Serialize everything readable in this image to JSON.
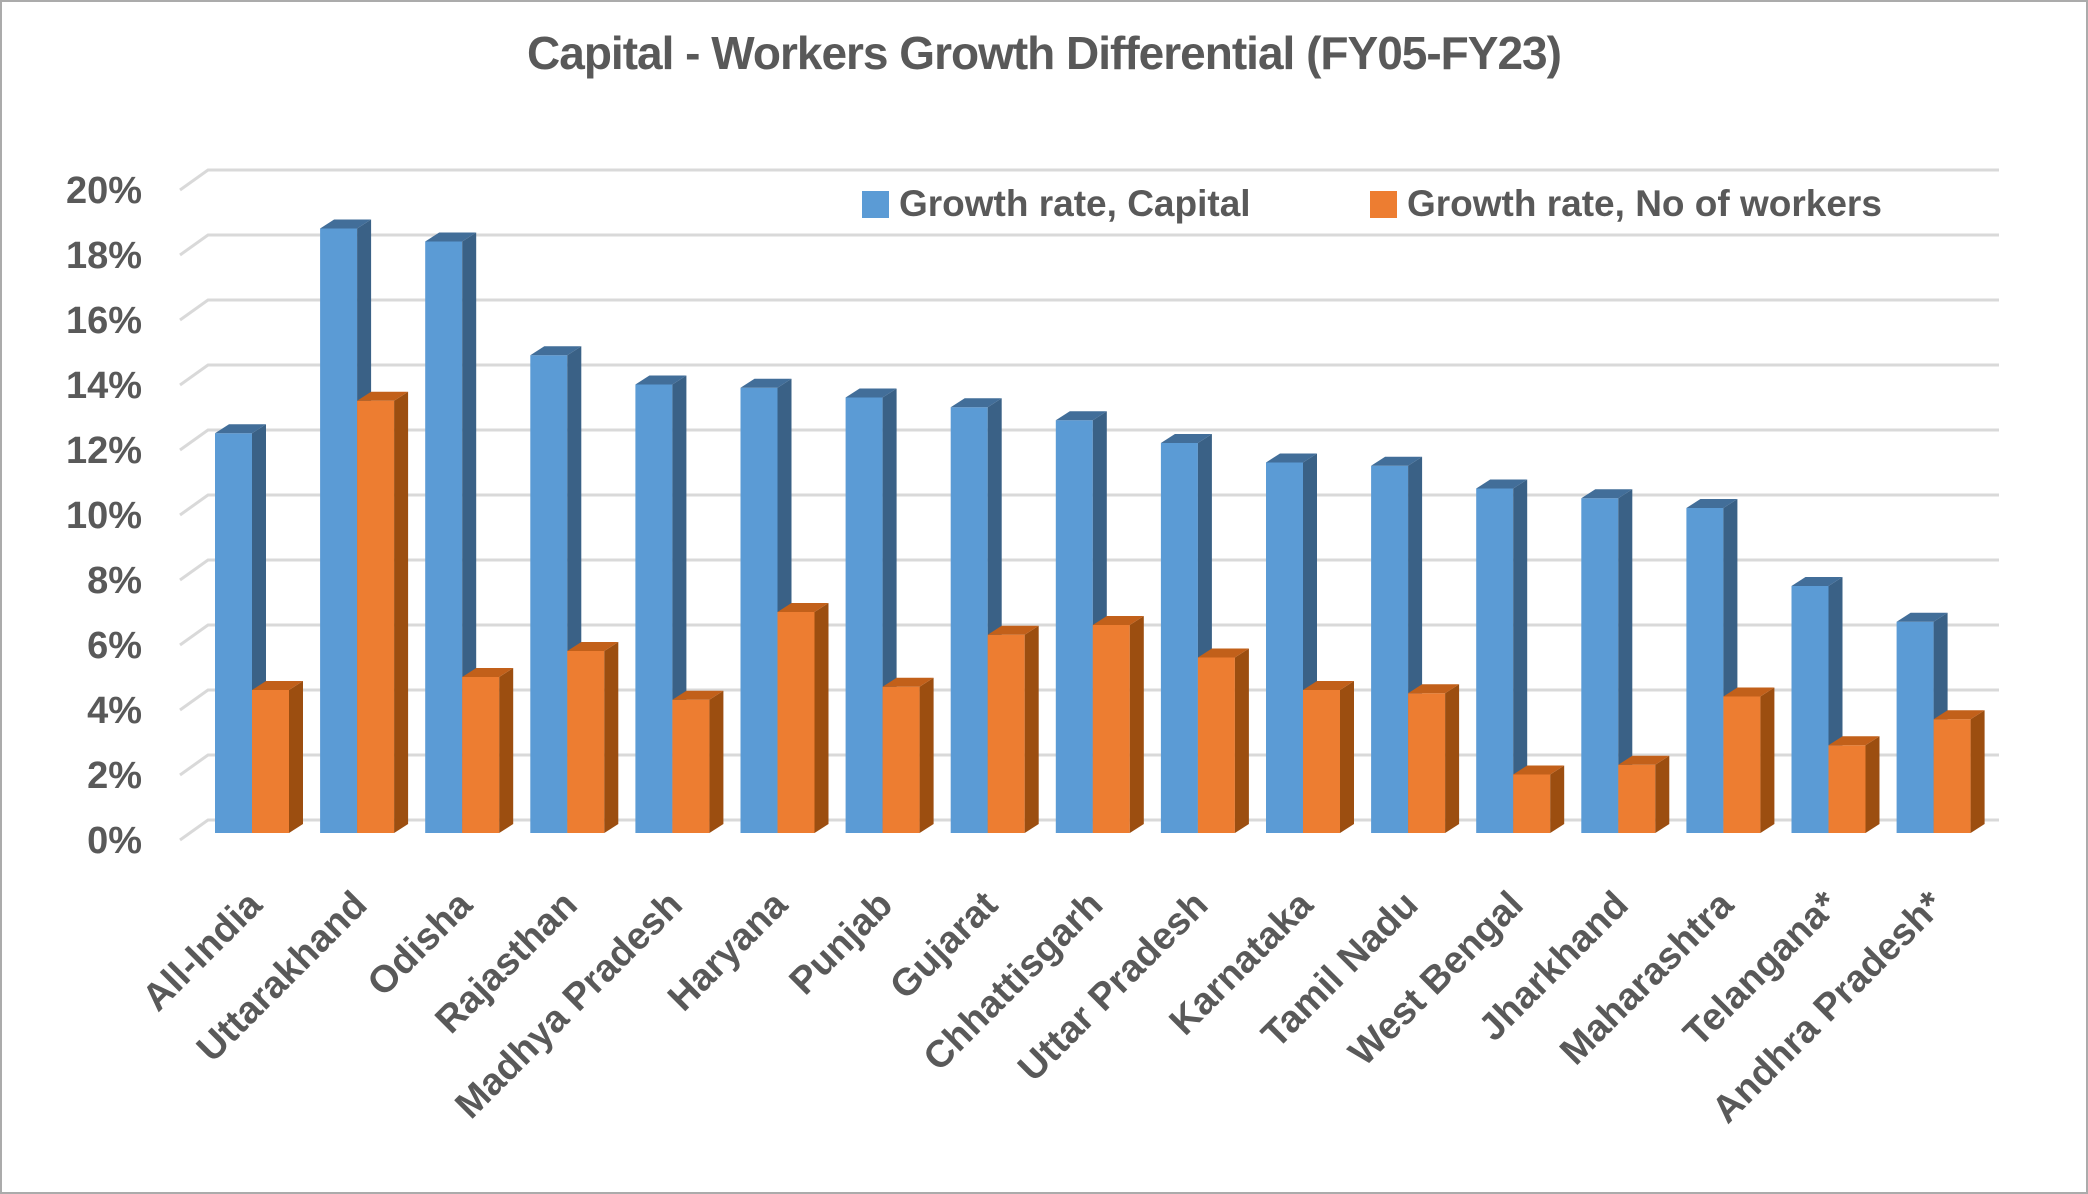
{
  "title": "Capital - Workers Growth Differential (FY05-FY23)",
  "legend": {
    "items": [
      {
        "label": "Growth rate, Capital",
        "color": "#5B9BD5"
      },
      {
        "label": "Growth rate, No of workers",
        "color": "#ED7D31"
      }
    ]
  },
  "axis": {
    "y_tick_labels": [
      "0%",
      "2%",
      "4%",
      "6%",
      "8%",
      "10%",
      "12%",
      "14%",
      "16%",
      "18%",
      "20%"
    ],
    "y_min": 0,
    "y_max": 20,
    "y_step": 2
  },
  "colors": {
    "text": "#595959",
    "gridline": "#d9d9d9",
    "border": "#ababab",
    "background": "#ffffff",
    "blue_front": "#5B9BD5",
    "blue_side": "#3a6186",
    "blue_top": "#426e99",
    "orange_front": "#ED7D31",
    "orange_side": "#9c4e10",
    "orange_top": "#c2601a"
  },
  "chart_data": {
    "type": "bar",
    "title": "Capital - Workers Growth Differential (FY05-FY23)",
    "categories": [
      "All-India",
      "Uttarakhand",
      "Odisha",
      "Rajasthan",
      "Madhya Pradesh",
      "Haryana",
      "Punjab",
      "Gujarat",
      "Chhattisgarh",
      "Uttar Pradesh",
      "Karnataka",
      "Tamil Nadu",
      "West Bengal",
      "Jharkhand",
      "Maharashtra",
      "Telangana*",
      "Andhra Pradesh*"
    ],
    "series": [
      {
        "name": "Growth rate, Capital",
        "color": "#5B9BD5",
        "values": [
          12.3,
          18.6,
          18.2,
          14.7,
          13.8,
          13.7,
          13.4,
          13.1,
          12.7,
          12.0,
          11.4,
          11.3,
          10.6,
          10.3,
          10.0,
          7.6,
          6.5
        ]
      },
      {
        "name": "Growth rate, No of workers",
        "color": "#ED7D31",
        "values": [
          4.4,
          13.3,
          4.8,
          5.6,
          4.1,
          6.8,
          4.5,
          6.1,
          6.4,
          5.4,
          4.4,
          4.3,
          1.8,
          2.1,
          4.2,
          2.7,
          3.5
        ]
      }
    ],
    "xlabel": "",
    "ylabel": "",
    "ylim": [
      0,
      20
    ],
    "grid": true,
    "style": "excel-3d-clustered-column",
    "legend_position": "top-right"
  }
}
